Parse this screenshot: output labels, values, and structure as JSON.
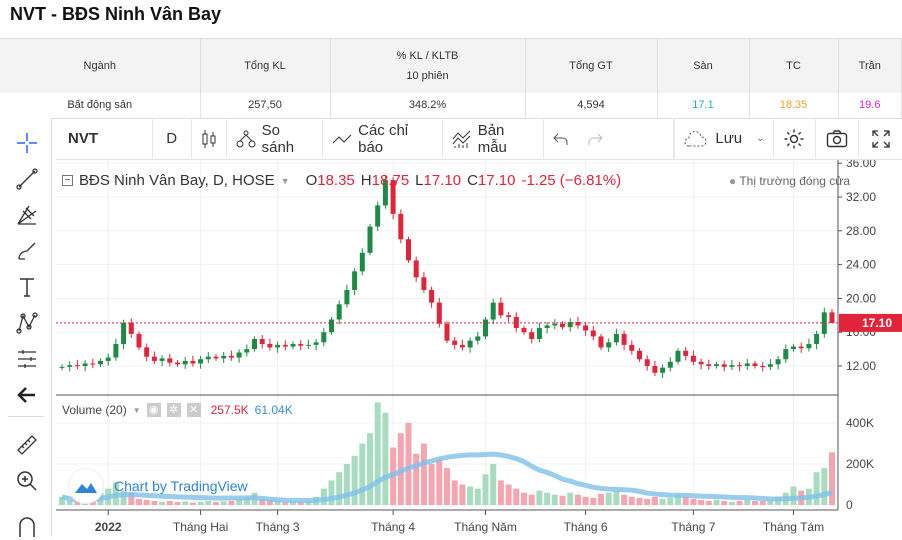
{
  "title": "NVT - BĐS Ninh Vân Bay",
  "table": {
    "headers": [
      "Ngành",
      "Tổng KL",
      "% KL / KLTB",
      "10 phiên",
      "Tổng GT",
      "Sàn",
      "TC",
      "Trần"
    ],
    "row": {
      "nganh": "Bất động sản",
      "tong_kl": "257,50",
      "kl_ratio": "348.2%",
      "tong_gt": "4,594",
      "san": "17.1",
      "tc": "18.35",
      "tran": "19.6"
    },
    "colors": {
      "san": "#1fb5b5",
      "tc": "#f0a030",
      "tran": "#e020d0"
    }
  },
  "toolbar": {
    "symbol": "NVT",
    "interval": "D",
    "compare": "So sánh",
    "indicators": "Các chỉ báo",
    "templates": "Bản mẫu",
    "save": "Lưu"
  },
  "legend": {
    "name": "BĐS Ninh Vân Bay, D, HOSE",
    "o_label": "O",
    "o": "18.35",
    "h_label": "H",
    "h": "18.75",
    "l_label": "L",
    "l": "17.10",
    "c_label": "C",
    "c": "17.10",
    "change": "-1.25 (−6.81%)",
    "market_status": "Thị trường đóng cửa"
  },
  "volume_legend": {
    "name": "Volume (20)",
    "vol": "257.5K",
    "ma": "61.04K"
  },
  "watermark": "Chart by TradingView",
  "last_price": "17.10",
  "chart_data": {
    "type": "candlestick",
    "price_ticks": [
      "36.00",
      "32.00",
      "28.00",
      "24.00",
      "20.00",
      "16.00",
      "12.00"
    ],
    "price_tick_values": [
      36,
      32,
      28,
      24,
      20,
      16,
      12
    ],
    "volume_ticks": [
      "400K",
      "200K",
      "0"
    ],
    "volume_tick_values": [
      400,
      200,
      0
    ],
    "time_labels": [
      "2022",
      "Tháng Hai",
      "Tháng 3",
      "Tháng 4",
      "Tháng Năm",
      "Tháng 6",
      "Tháng 7",
      "Tháng Tám"
    ],
    "time_label_index": [
      6,
      18,
      28,
      43,
      55,
      68,
      82,
      95
    ],
    "colors": {
      "up": "#1d8a45",
      "down": "#e0243a",
      "vol_up": "#a8dcc0",
      "vol_down": "#f5a5b0",
      "ma": "#7fc0ea"
    },
    "closes": [
      11.9,
      12.1,
      12.0,
      12.3,
      12.2,
      12.6,
      13.0,
      14.6,
      17.1,
      15.8,
      14.2,
      13.1,
      12.6,
      12.9,
      12.4,
      12.2,
      12.6,
      12.3,
      12.8,
      13.1,
      12.9,
      13.2,
      13.0,
      13.6,
      14.0,
      15.2,
      14.6,
      14.2,
      14.5,
      14.3,
      14.6,
      14.4,
      14.5,
      14.8,
      16.0,
      17.5,
      19.3,
      21.0,
      23.2,
      25.4,
      28.5,
      31.0,
      34.0,
      30.0,
      27.0,
      24.5,
      22.5,
      21.0,
      19.5,
      17.0,
      15.0,
      14.5,
      14.2,
      15.0,
      15.5,
      17.5,
      19.5,
      18.0,
      17.8,
      16.5,
      16.0,
      15.2,
      16.5,
      16.8,
      17.0,
      16.6,
      17.2,
      16.8,
      16.2,
      15.5,
      14.2,
      14.8,
      15.8,
      14.5,
      13.8,
      12.8,
      12.0,
      11.2,
      11.8,
      12.5,
      13.8,
      13.2,
      12.5,
      12.2,
      12.0,
      12.2,
      11.9,
      12.1,
      12.0,
      12.3,
      12.0,
      11.9,
      12.2,
      12.8,
      14.0,
      14.3,
      14.1,
      14.6,
      15.8,
      18.35,
      17.1
    ],
    "volumes_k": [
      40,
      20,
      15,
      30,
      25,
      60,
      80,
      110,
      70,
      60,
      30,
      25,
      20,
      15,
      20,
      15,
      18,
      12,
      15,
      20,
      15,
      18,
      20,
      30,
      40,
      60,
      30,
      25,
      20,
      15,
      18,
      15,
      20,
      40,
      80,
      120,
      160,
      200,
      240,
      300,
      350,
      500,
      450,
      280,
      350,
      400,
      250,
      300,
      200,
      220,
      180,
      120,
      100,
      90,
      80,
      150,
      200,
      120,
      100,
      80,
      60,
      50,
      70,
      60,
      50,
      45,
      60,
      50,
      40,
      35,
      55,
      60,
      70,
      50,
      40,
      35,
      30,
      40,
      30,
      35,
      50,
      40,
      30,
      25,
      20,
      25,
      20,
      15,
      20,
      25,
      20,
      20,
      25,
      40,
      60,
      90,
      70,
      80,
      160,
      180,
      257.5
    ],
    "last_high": 18.75
  }
}
